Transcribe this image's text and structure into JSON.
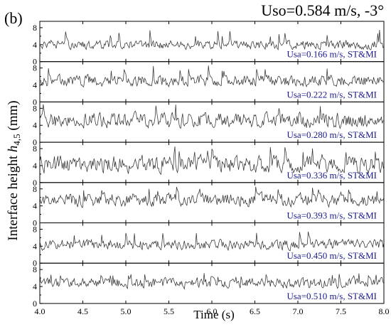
{
  "panel_label": "(b)",
  "title": "Uso=0.584 m/s, -3°",
  "colors": {
    "line": "#333333",
    "annotation": "#1a1a8c",
    "axes": "#000000",
    "background": "#ffffff"
  },
  "chart_data": {
    "type": "line",
    "title": "Uso=0.584 m/s, -3°",
    "xlabel": "Time (s)",
    "ylabel": {
      "prefix": "Interface height ",
      "var": "h",
      "sub": "4,5",
      "unit": " (mm)"
    },
    "xlim": [
      4.0,
      8.0
    ],
    "x_ticks": [
      "4.0",
      "4.5",
      "5.0",
      "5.5",
      "6.0",
      "6.5",
      "7.0",
      "7.5",
      "8.0"
    ],
    "y_ticks": [
      "0",
      "4",
      "8"
    ],
    "ylim": [
      0,
      9.5
    ],
    "grid": false,
    "legend": "none",
    "sample_interval_s": 0.01,
    "series": [
      {
        "name": "Usa=0.166 m/s, ST&MI",
        "mean": 4.0,
        "amplitude": 0.8,
        "peak_max": 7.5
      },
      {
        "name": "Usa=0.222 m/s, ST&MI",
        "mean": 5.0,
        "amplitude": 1.0,
        "peak_max": 9.0
      },
      {
        "name": "Usa=0.280 m/s, ST&MI",
        "mean": 5.2,
        "amplitude": 1.4,
        "peak_max": 9.0
      },
      {
        "name": "Usa=0.336 m/s, ST&MI",
        "mean": 4.3,
        "amplitude": 1.5,
        "peak_max": 8.6
      },
      {
        "name": "Usa=0.393 m/s, ST&MI",
        "mean": 5.5,
        "amplitude": 1.2,
        "peak_max": 8.5
      },
      {
        "name": "Usa=0.450 m/s, ST&MI",
        "mean": 4.4,
        "amplitude": 0.9,
        "peak_max": 7.5
      },
      {
        "name": "Usa=0.510 m/s, ST&MI",
        "mean": 4.8,
        "amplitude": 0.9,
        "peak_max": 7.2
      }
    ]
  }
}
